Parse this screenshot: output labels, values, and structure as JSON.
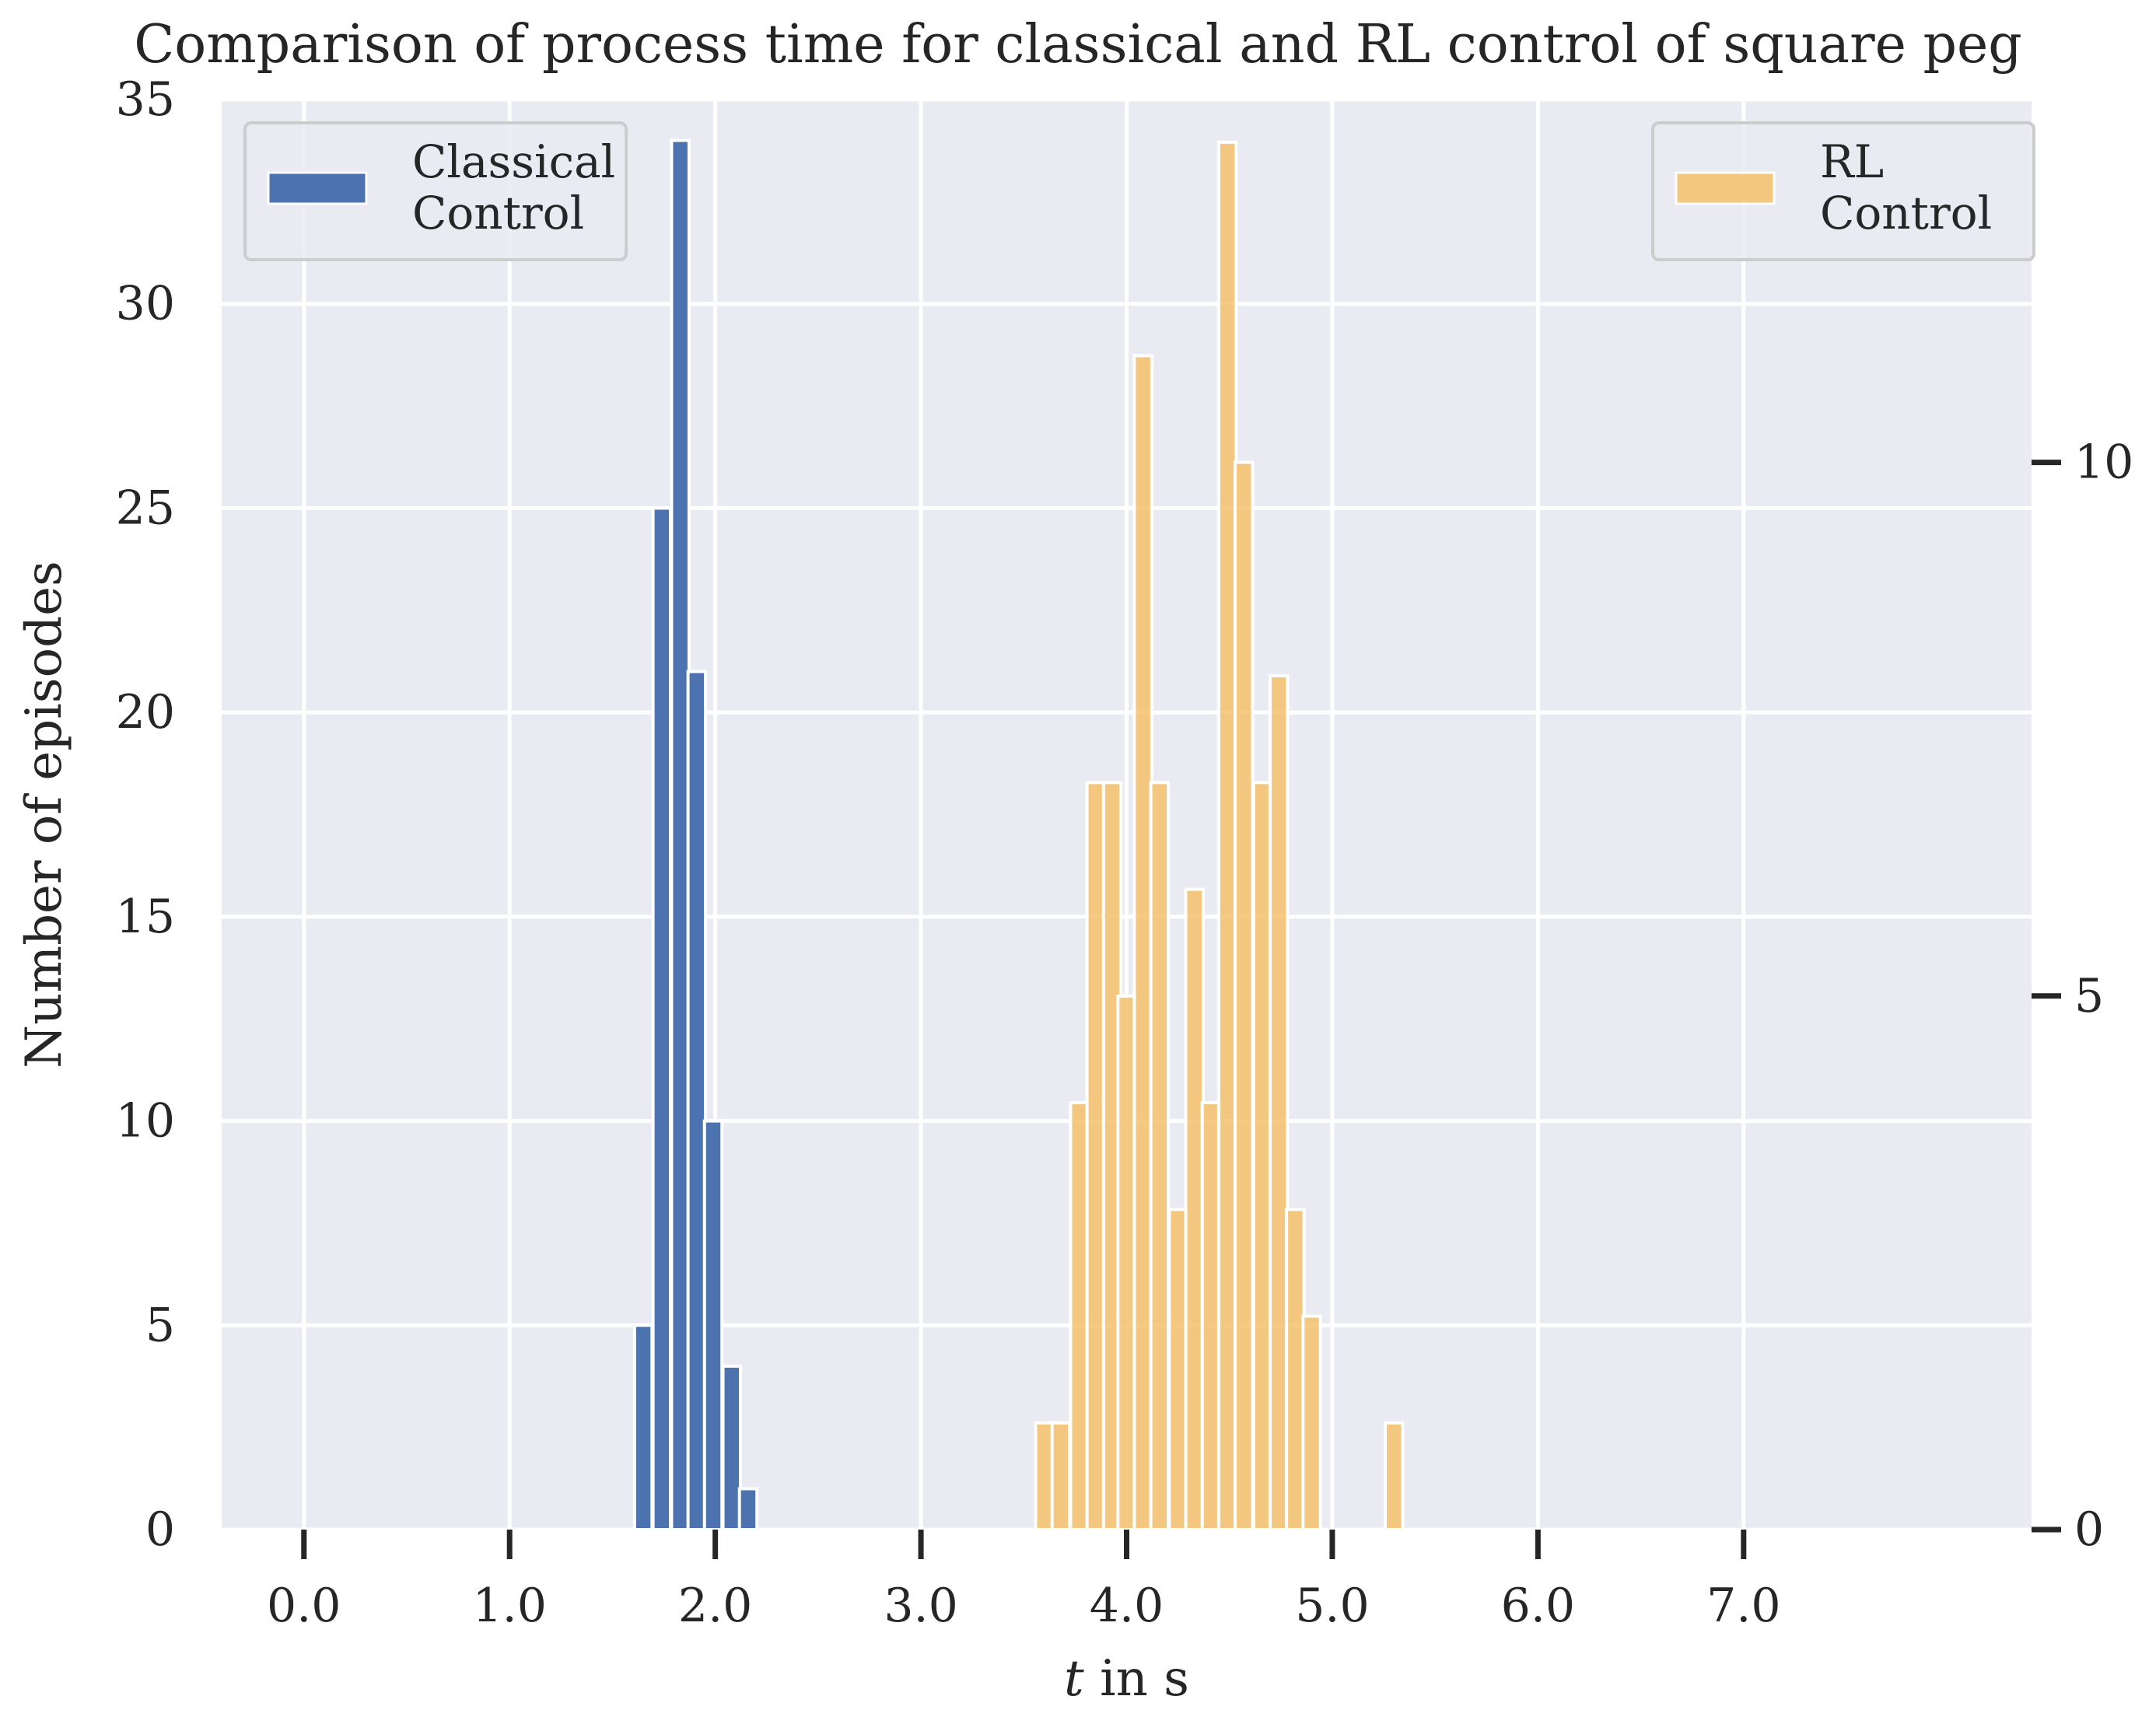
{
  "chart_data": {
    "type": "bar",
    "title": "Comparison of process time for classical and RL control of square peg",
    "xlabel": "t in s",
    "xlabel_italic_part": "t",
    "xlabel_rest": " in s",
    "ylabel": "Number of episodes",
    "xlim": [
      -0.4,
      8.4
    ],
    "ylim_left": [
      0,
      35
    ],
    "ylim_right": [
      0,
      13.4
    ],
    "x_ticks": [
      0,
      1,
      2,
      3,
      4,
      5,
      6,
      7
    ],
    "x_tick_labels": [
      "0.0",
      "1.0",
      "2.0",
      "3.0",
      "4.0",
      "5.0",
      "6.0",
      "7.0"
    ],
    "y_ticks_left": [
      0,
      5,
      10,
      15,
      20,
      25,
      30,
      35
    ],
    "y_tick_labels_left": [
      "0",
      "5",
      "10",
      "15",
      "20",
      "25",
      "30",
      "35"
    ],
    "y_ticks_right": [
      0,
      5,
      10
    ],
    "y_tick_labels_right": [
      "0",
      "5",
      "10"
    ],
    "grid": true,
    "background": "#eaeaf2",
    "series": [
      {
        "name_lines": [
          "Classical",
          "Control"
        ],
        "axis": "left",
        "color": "#4c72b0",
        "opacity": 1.0,
        "bin_width": 0.085,
        "x": [
          1.65,
          1.74,
          1.83,
          1.91,
          1.99,
          2.08,
          2.16
        ],
        "values": [
          5,
          25,
          34,
          21,
          10,
          4,
          1
        ]
      },
      {
        "name_lines": [
          "RL",
          "Control"
        ],
        "axis": "right",
        "color": "#f5c16c",
        "opacity": 0.85,
        "bin_width": 0.085,
        "x": [
          3.6,
          3.68,
          3.77,
          3.85,
          3.93,
          4.0,
          4.08,
          4.16,
          4.25,
          4.33,
          4.41,
          4.49,
          4.57,
          4.66,
          4.74,
          4.82,
          4.9,
          5.3
        ],
        "values": [
          1,
          1,
          4,
          7,
          7,
          5,
          11,
          7,
          3,
          6,
          4,
          13,
          10,
          7,
          8,
          3,
          2,
          1
        ]
      }
    ],
    "legend_left": "top-left",
    "legend_right": "top-right"
  }
}
